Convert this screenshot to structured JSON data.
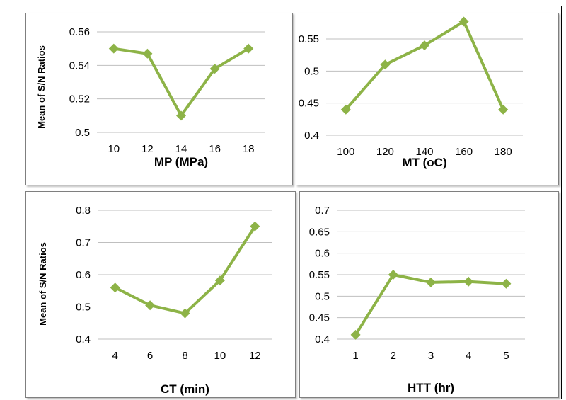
{
  "colors": {
    "series": "#8db347",
    "grid": "#bfbfbf"
  },
  "chart_data": [
    {
      "type": "line",
      "categories": [
        "10",
        "12",
        "14",
        "16",
        "18"
      ],
      "values": [
        0.55,
        0.547,
        0.51,
        0.538,
        0.55
      ],
      "ylim": [
        0.5,
        0.56
      ],
      "yticks": [
        "0.5",
        "0.52",
        "0.54",
        "0.56"
      ],
      "xlabel": "MP (MPa)",
      "ylabel": "Mean of S/N Ratios",
      "grid": true,
      "marker": "diamond"
    },
    {
      "type": "line",
      "categories": [
        "100",
        "120",
        "140",
        "160",
        "180"
      ],
      "values": [
        0.44,
        0.51,
        0.54,
        0.577,
        0.44
      ],
      "ylim": [
        0.4,
        0.55
      ],
      "yticks": [
        "0.4",
        "0.45",
        "0.5",
        "0.55"
      ],
      "xlabel": "MT (oC)",
      "ylabel": "",
      "grid": true,
      "marker": "diamond"
    },
    {
      "type": "line",
      "categories": [
        "4",
        "6",
        "8",
        "10",
        "12"
      ],
      "values": [
        0.56,
        0.505,
        0.48,
        0.582,
        0.75
      ],
      "ylim": [
        0.4,
        0.8
      ],
      "yticks": [
        "0.4",
        "0.5",
        "0.6",
        "0.7",
        "0.8"
      ],
      "xlabel": "CT (min)",
      "ylabel": "Mean of S/N Ratios",
      "grid": true,
      "marker": "diamond"
    },
    {
      "type": "line",
      "categories": [
        "1",
        "2",
        "3",
        "4",
        "5"
      ],
      "values": [
        0.41,
        0.55,
        0.532,
        0.534,
        0.529
      ],
      "ylim": [
        0.4,
        0.7
      ],
      "yticks": [
        "0.4",
        "0.45",
        "0.5",
        "0.55",
        "0.6",
        "0.65",
        "0.7"
      ],
      "xlabel": "HTT (hr)",
      "ylabel": "",
      "grid": true,
      "marker": "diamond"
    }
  ]
}
